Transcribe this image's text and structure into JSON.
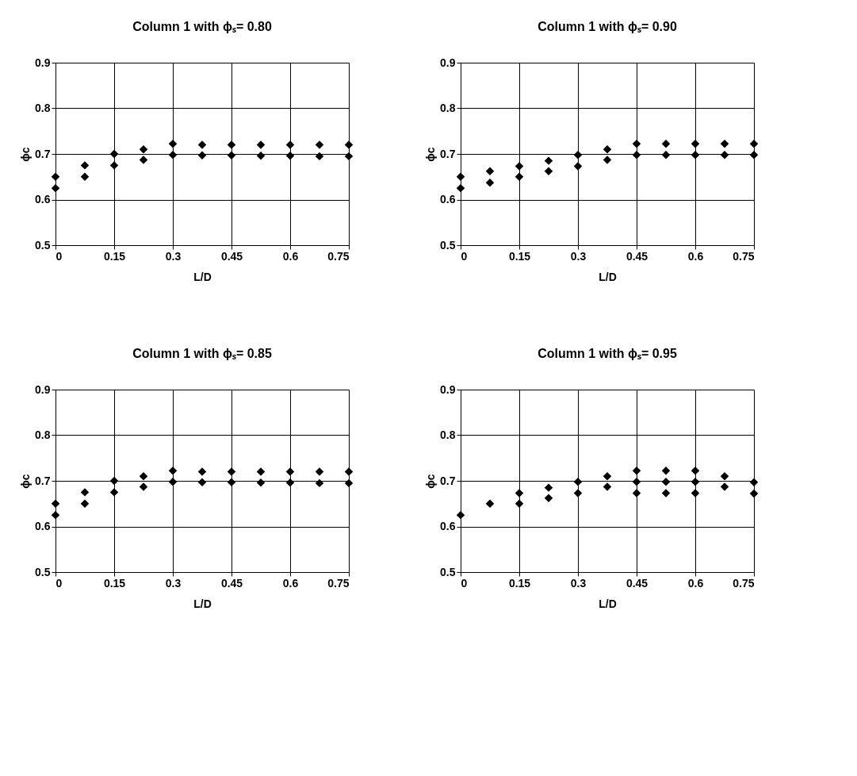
{
  "chart_data": [
    {
      "type": "scatter",
      "title": "Column 1 with ϕₛ= 0.80",
      "xlabel": "L/D",
      "ylabel": "ϕc",
      "xlim": [
        0,
        0.75
      ],
      "ylim": [
        0.5,
        0.9
      ],
      "xticks": [
        0,
        0.15,
        0.3,
        0.45,
        0.6,
        0.75
      ],
      "yticks": [
        0.5,
        0.6,
        0.7,
        0.8,
        0.9
      ],
      "grid": true,
      "marker": "diamond",
      "series": [
        {
          "color": "#000000",
          "x": [
            0,
            0,
            0.075,
            0.075,
            0.15,
            0.15,
            0.225,
            0.225,
            0.3,
            0.3,
            0.375,
            0.375,
            0.45,
            0.45,
            0.525,
            0.525,
            0.6,
            0.6,
            0.675,
            0.675,
            0.75,
            0.75
          ],
          "values": [
            0.65,
            0.625,
            0.675,
            0.65,
            0.7,
            0.675,
            0.71,
            0.687,
            0.722,
            0.698,
            0.72,
            0.697,
            0.72,
            0.697,
            0.72,
            0.696,
            0.72,
            0.696,
            0.72,
            0.695,
            0.72,
            0.695
          ]
        }
      ]
    },
    {
      "type": "scatter",
      "title": "Column 1 with ϕₛ= 0.90",
      "xlabel": "L/D",
      "ylabel": "ϕc",
      "xlim": [
        0,
        0.75
      ],
      "ylim": [
        0.5,
        0.9
      ],
      "xticks": [
        0,
        0.15,
        0.3,
        0.45,
        0.6,
        0.75
      ],
      "yticks": [
        0.5,
        0.6,
        0.7,
        0.8,
        0.9
      ],
      "grid": true,
      "marker": "diamond",
      "series": [
        {
          "color": "#000000",
          "x": [
            0,
            0,
            0.075,
            0.075,
            0.15,
            0.15,
            0.225,
            0.225,
            0.3,
            0.3,
            0.375,
            0.375,
            0.45,
            0.45,
            0.525,
            0.525,
            0.6,
            0.6,
            0.675,
            0.675,
            0.75,
            0.75
          ],
          "values": [
            0.65,
            0.625,
            0.662,
            0.637,
            0.673,
            0.65,
            0.685,
            0.662,
            0.698,
            0.673,
            0.71,
            0.687,
            0.722,
            0.698,
            0.722,
            0.698,
            0.722,
            0.698,
            0.722,
            0.698,
            0.722,
            0.698
          ]
        }
      ]
    },
    {
      "type": "scatter",
      "title": "Column 1 with ϕₛ= 0.85",
      "xlabel": "L/D",
      "ylabel": "ϕc",
      "xlim": [
        0,
        0.75
      ],
      "ylim": [
        0.5,
        0.9
      ],
      "xticks": [
        0,
        0.15,
        0.3,
        0.45,
        0.6,
        0.75
      ],
      "yticks": [
        0.5,
        0.6,
        0.7,
        0.8,
        0.9
      ],
      "grid": true,
      "marker": "diamond",
      "series": [
        {
          "color": "#000000",
          "x": [
            0,
            0,
            0.075,
            0.075,
            0.15,
            0.15,
            0.225,
            0.225,
            0.3,
            0.3,
            0.375,
            0.375,
            0.45,
            0.45,
            0.525,
            0.525,
            0.6,
            0.6,
            0.675,
            0.675,
            0.75,
            0.75
          ],
          "values": [
            0.65,
            0.625,
            0.675,
            0.65,
            0.7,
            0.675,
            0.71,
            0.687,
            0.722,
            0.698,
            0.72,
            0.697,
            0.72,
            0.697,
            0.72,
            0.696,
            0.72,
            0.696,
            0.72,
            0.695,
            0.72,
            0.695
          ]
        }
      ]
    },
    {
      "type": "scatter",
      "title": "Column 1 with ϕₛ= 0.95",
      "xlabel": "L/D",
      "ylabel": "ϕc",
      "xlim": [
        0,
        0.75
      ],
      "ylim": [
        0.5,
        0.9
      ],
      "xticks": [
        0,
        0.15,
        0.3,
        0.45,
        0.6,
        0.75
      ],
      "yticks": [
        0.5,
        0.6,
        0.7,
        0.8,
        0.9
      ],
      "grid": true,
      "marker": "diamond",
      "series": [
        {
          "color": "#000000",
          "x": [
            0,
            0.075,
            0.15,
            0.15,
            0.225,
            0.225,
            0.3,
            0.3,
            0.375,
            0.375,
            0.45,
            0.45,
            0.45,
            0.525,
            0.525,
            0.525,
            0.6,
            0.6,
            0.6,
            0.675,
            0.675,
            0.75,
            0.75
          ],
          "values": [
            0.625,
            0.65,
            0.673,
            0.65,
            0.685,
            0.662,
            0.698,
            0.673,
            0.71,
            0.687,
            0.722,
            0.698,
            0.673,
            0.722,
            0.698,
            0.673,
            0.722,
            0.698,
            0.673,
            0.71,
            0.687,
            0.697,
            0.672
          ]
        }
      ]
    }
  ]
}
